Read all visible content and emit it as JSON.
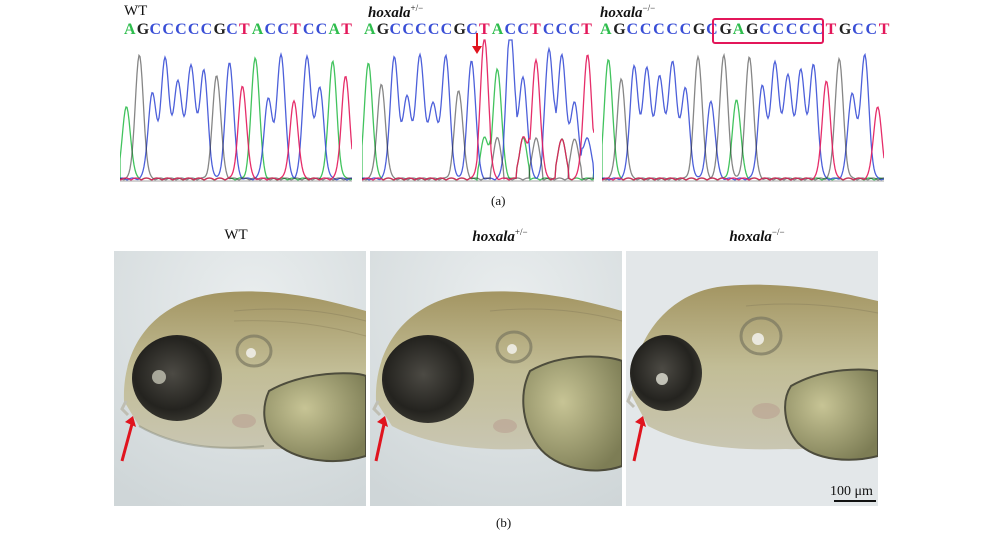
{
  "panel_a": {
    "caption": "(a)",
    "tracks": [
      {
        "id": "wt",
        "genotype": "WT",
        "superscript": "",
        "sequence": "AGCCCCCGCTACCTCCAT"
      },
      {
        "id": "het",
        "genotype": "hoxala",
        "superscript": "+/−",
        "sequence": "AGCCCCCGCTACCTCCCT"
      },
      {
        "id": "hom",
        "genotype": "hoxala",
        "superscript": "−/−",
        "sequence": "AGCCCCCGCGAGCCCCCTGCCT"
      }
    ]
  },
  "panel_b": {
    "caption": "(b)",
    "headers": [
      {
        "genotype": "WT",
        "superscript": ""
      },
      {
        "genotype": "hoxala",
        "superscript": "+/−"
      },
      {
        "genotype": "hoxala",
        "superscript": "−/−"
      }
    ],
    "scale_bar_label": "100 μm"
  },
  "colors": {
    "A": "#2ebd4d",
    "C": "#3a4fd6",
    "G": "#222222",
    "T": "#e3175a",
    "highlight": "#e3175a",
    "arrow": "#e0141e"
  }
}
